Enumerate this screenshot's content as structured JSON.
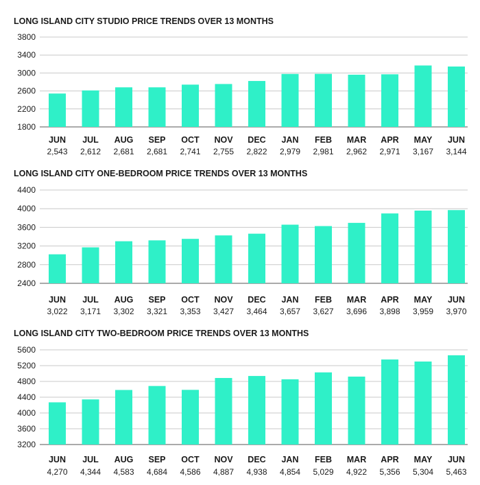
{
  "chart_data": [
    {
      "type": "bar",
      "title": "LONG ISLAND CITY STUDIO PRICE TRENDS OVER 13 MONTHS",
      "categories": [
        "JUN",
        "JUL",
        "AUG",
        "SEP",
        "OCT",
        "NOV",
        "DEC",
        "JAN",
        "FEB",
        "MAR",
        "APR",
        "MAY",
        "JUN"
      ],
      "values": [
        2543,
        2612,
        2681,
        2681,
        2741,
        2755,
        2822,
        2979,
        2981,
        2962,
        2971,
        3167,
        3144
      ],
      "value_labels": [
        "2,543",
        "2,612",
        "2,681",
        "2,681",
        "2,741",
        "2,755",
        "2,822",
        "2,979",
        "2,981",
        "2,962",
        "2,971",
        "3,167",
        "3,144"
      ],
      "ylim": [
        1800,
        3800
      ],
      "yticks": [
        1800,
        2200,
        2600,
        3000,
        3400,
        3800
      ],
      "grid": true,
      "bar_color": "#2FF0C8"
    },
    {
      "type": "bar",
      "title": "LONG ISLAND CITY ONE-BEDROOM PRICE TRENDS OVER 13 MONTHS",
      "categories": [
        "JUN",
        "JUL",
        "AUG",
        "SEP",
        "OCT",
        "NOV",
        "DEC",
        "JAN",
        "FEB",
        "MAR",
        "APR",
        "MAY",
        "JUN"
      ],
      "values": [
        3022,
        3171,
        3302,
        3321,
        3353,
        3427,
        3464,
        3657,
        3627,
        3696,
        3898,
        3959,
        3970
      ],
      "value_labels": [
        "3,022",
        "3,171",
        "3,302",
        "3,321",
        "3,353",
        "3,427",
        "3,464",
        "3,657",
        "3,627",
        "3,696",
        "3,898",
        "3,959",
        "3,970"
      ],
      "ylim": [
        2400,
        4400
      ],
      "yticks": [
        2400,
        2800,
        3200,
        3600,
        4000,
        4400
      ],
      "grid": true,
      "bar_color": "#2FF0C8"
    },
    {
      "type": "bar",
      "title": "LONG ISLAND CITY TWO-BEDROOM PRICE TRENDS OVER 13 MONTHS",
      "categories": [
        "JUN",
        "JUL",
        "AUG",
        "SEP",
        "OCT",
        "NOV",
        "DEC",
        "JAN",
        "FEB",
        "MAR",
        "APR",
        "MAY",
        "JUN"
      ],
      "values": [
        4270,
        4344,
        4583,
        4684,
        4586,
        4887,
        4938,
        4854,
        5029,
        4922,
        5356,
        5304,
        5463
      ],
      "value_labels": [
        "4,270",
        "4,344",
        "4,583",
        "4,684",
        "4,586",
        "4,887",
        "4,938",
        "4,854",
        "5,029",
        "4,922",
        "5,356",
        "5,304",
        "5,463"
      ],
      "ylim": [
        3200,
        5600
      ],
      "yticks": [
        3200,
        3600,
        4000,
        4400,
        4800,
        5200,
        5600
      ],
      "grid": true,
      "bar_color": "#2FF0C8"
    }
  ]
}
